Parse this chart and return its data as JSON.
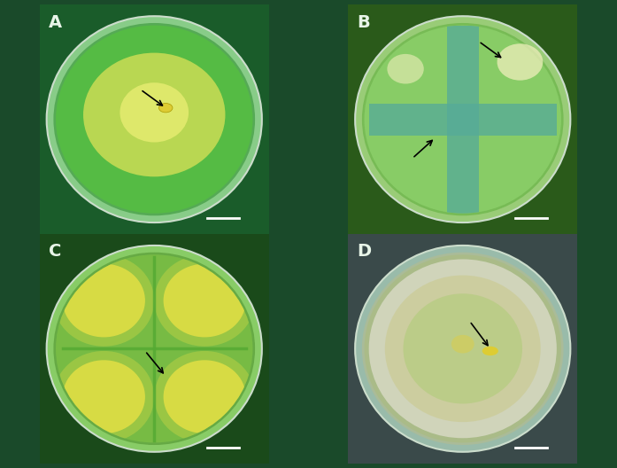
{
  "figure_bg": "#1a4a2a",
  "panel_labels": [
    "A",
    "B",
    "C",
    "D"
  ],
  "label_color": "#e8f5e8",
  "label_fontsize": 14,
  "label_fontweight": "bold",
  "panels": [
    {
      "id": "A",
      "bg": "#1a5c2a",
      "dish_edge_color": "#88cc88",
      "dish_fill": "#55aa55",
      "type": "single_colony"
    },
    {
      "id": "B",
      "bg": "#2a5a1a",
      "dish_edge_color": "#99cc77",
      "dish_fill": "#77bb55",
      "type": "cross_pattern"
    },
    {
      "id": "C",
      "bg": "#1a4a1a",
      "dish_edge_color": "#88cc66",
      "dish_fill": "#66aa44",
      "type": "four_sectors"
    },
    {
      "id": "D",
      "bg": "#3a4a4a",
      "dish_edge_color": "#99bbaa",
      "dish_fill": "#aabb99",
      "type": "ring_colony"
    }
  ]
}
